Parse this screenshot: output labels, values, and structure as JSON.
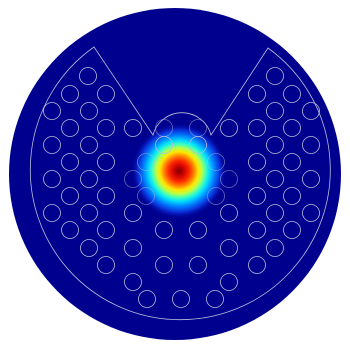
{
  "figure": {
    "description_free": true,
    "colormap": "jet",
    "background_color": "#ffffff",
    "domain_fill_color": "#00008f",
    "outline_color": "#b8bcd8",
    "field_peak_color": "#8b0000",
    "visible_text": []
  },
  "fiber": {
    "hole_rings_per_side": 4,
    "hole_count_rendered": 52,
    "field": {
      "peak_normalized": 1.0,
      "shape": "gaussian",
      "mode": "fundamental"
    }
  }
}
